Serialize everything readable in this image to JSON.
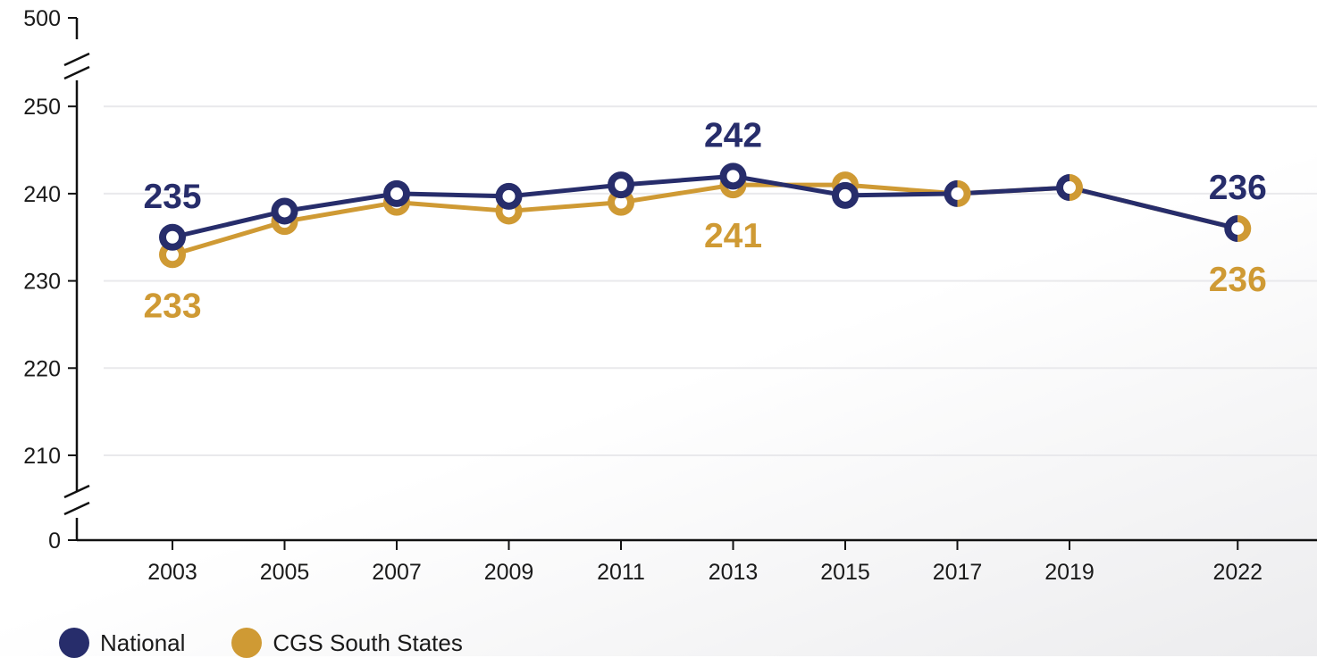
{
  "colors": {
    "national": "#272d6b",
    "south": "#cf9a34",
    "axis": "#111111",
    "grid": "#e9e9ec"
  },
  "chart_data": {
    "type": "line",
    "title": "",
    "xlabel": "",
    "ylabel": "",
    "x": [
      "2003",
      "2005",
      "2007",
      "2009",
      "2011",
      "2013",
      "2015",
      "2017",
      "2019",
      "2022"
    ],
    "x_values": [
      2003,
      2005,
      2007,
      2009,
      2011,
      2013,
      2015,
      2017,
      2019,
      2022
    ],
    "y_ticks": [
      "0",
      "210",
      "220",
      "230",
      "240",
      "250",
      "500"
    ],
    "ylim_main": [
      205,
      255
    ],
    "axis_break": true,
    "grid": true,
    "legend_position": "bottom-left",
    "series": [
      {
        "name": "National",
        "key": "national",
        "values": [
          235,
          238,
          240,
          239.7,
          241,
          242,
          239.8,
          240,
          240.7,
          236
        ],
        "labels": [
          {
            "index": 0,
            "text": "235",
            "position": "above"
          },
          {
            "index": 5,
            "text": "242",
            "position": "above"
          },
          {
            "index": 9,
            "text": "236",
            "position": "above"
          }
        ]
      },
      {
        "name": "CGS South States",
        "key": "south",
        "values": [
          233,
          236.8,
          239,
          238,
          239,
          241,
          241,
          240,
          240.7,
          236
        ],
        "labels": [
          {
            "index": 0,
            "text": "233",
            "position": "below"
          },
          {
            "index": 5,
            "text": "241",
            "position": "below"
          },
          {
            "index": 9,
            "text": "236",
            "position": "below"
          }
        ]
      }
    ]
  },
  "legend": [
    {
      "label": "National",
      "key": "national"
    },
    {
      "label": "CGS South States",
      "key": "south"
    }
  ]
}
